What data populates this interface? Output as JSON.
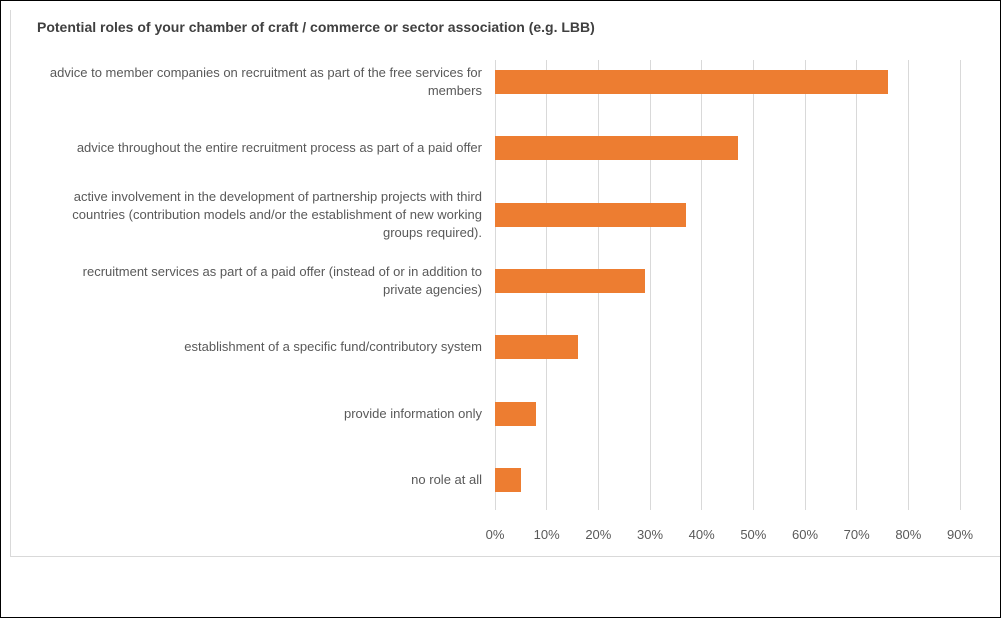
{
  "chart_data": {
    "type": "bar",
    "orientation": "horizontal",
    "title": "Potential roles of your chamber of craft / commerce or sector association (e.g. LBB)",
    "categories": [
      "advice to member companies on recruitment as part of the free services for members",
      "advice throughout the entire recruitment process as part of a paid offer",
      "active involvement in the development of partnership projects with third countries (contribution models and/or the establishment of new working groups required).",
      "recruitment services as part of a paid offer (instead of or in addition to private agencies)",
      "establishment of a specific fund/contributory system",
      "provide information only",
      "no role at all"
    ],
    "values": [
      76,
      47,
      37,
      29,
      16,
      8,
      5
    ],
    "color": "#ed7d31",
    "xlim": [
      0,
      90
    ],
    "xticks": [
      {
        "value": 0,
        "label": "0%"
      },
      {
        "value": 10,
        "label": "10%"
      },
      {
        "value": 20,
        "label": "20%"
      },
      {
        "value": 30,
        "label": "30%"
      },
      {
        "value": 40,
        "label": "40%"
      },
      {
        "value": 50,
        "label": "50%"
      },
      {
        "value": 60,
        "label": "60%"
      },
      {
        "value": 70,
        "label": "70%"
      },
      {
        "value": 80,
        "label": "80%"
      },
      {
        "value": 90,
        "label": "90%"
      }
    ],
    "grid": true
  }
}
